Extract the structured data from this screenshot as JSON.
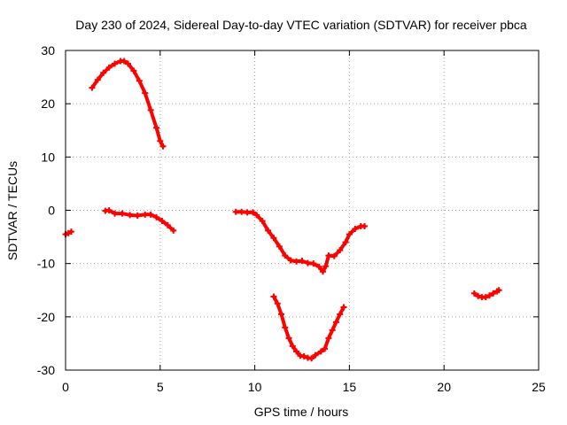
{
  "chart_data": {
    "type": "scatter",
    "title": "Day 230 of 2024, Sidereal Day-to-day VTEC variation (SDTVAR) for receiver pbca",
    "xlabel": "GPS time / hours",
    "ylabel": "SDTVAR / TECUs",
    "xlim": [
      0,
      25
    ],
    "ylim": [
      -30,
      30
    ],
    "xticks": [
      0,
      5,
      10,
      15,
      20,
      25
    ],
    "yticks": [
      -30,
      -20,
      -10,
      0,
      10,
      20,
      30
    ],
    "grid": true,
    "legend": "none",
    "series": [
      {
        "name": "sdtvar-arc-1",
        "color": "#ff0000",
        "points": [
          [
            0.0,
            -4.5
          ],
          [
            0.15,
            -4.3
          ],
          [
            0.3,
            -4.0
          ]
        ]
      },
      {
        "name": "sdtvar-arc-2",
        "color": "#ff0000",
        "points": [
          [
            1.4,
            23.0
          ],
          [
            1.7,
            24.5
          ],
          [
            2.0,
            25.8
          ],
          [
            2.3,
            26.8
          ],
          [
            2.6,
            27.5
          ],
          [
            2.9,
            28.0
          ],
          [
            3.1,
            28.0
          ],
          [
            3.3,
            27.5
          ],
          [
            3.6,
            26.2
          ],
          [
            3.9,
            24.3
          ],
          [
            4.2,
            22.0
          ],
          [
            4.5,
            18.8
          ],
          [
            4.8,
            15.5
          ],
          [
            5.0,
            13.0
          ],
          [
            5.15,
            12.0
          ]
        ]
      },
      {
        "name": "sdtvar-arc-3",
        "color": "#ff0000",
        "points": [
          [
            2.1,
            -0.1
          ],
          [
            2.3,
            0.0
          ],
          [
            2.6,
            -0.6
          ],
          [
            3.0,
            -0.6
          ],
          [
            3.4,
            -0.9
          ],
          [
            3.8,
            -1.0
          ],
          [
            4.2,
            -0.8
          ],
          [
            4.5,
            -0.8
          ],
          [
            4.8,
            -1.3
          ],
          [
            5.1,
            -2.0
          ],
          [
            5.4,
            -2.8
          ],
          [
            5.7,
            -3.8
          ]
        ]
      },
      {
        "name": "sdtvar-arc-4",
        "color": "#ff0000",
        "points": [
          [
            9.0,
            -0.3
          ],
          [
            9.3,
            -0.3
          ],
          [
            9.6,
            -0.4
          ],
          [
            9.9,
            -0.4
          ],
          [
            10.1,
            -0.9
          ],
          [
            10.4,
            -2.0
          ],
          [
            10.7,
            -3.8
          ],
          [
            11.0,
            -5.2
          ],
          [
            11.3,
            -6.8
          ],
          [
            11.6,
            -8.5
          ],
          [
            11.9,
            -9.4
          ],
          [
            12.2,
            -9.6
          ],
          [
            12.5,
            -9.5
          ],
          [
            12.8,
            -9.9
          ],
          [
            13.1,
            -10.0
          ],
          [
            13.4,
            -10.6
          ],
          [
            13.6,
            -11.5
          ],
          [
            13.75,
            -10.5
          ],
          [
            13.9,
            -8.5
          ],
          [
            14.2,
            -8.6
          ],
          [
            14.5,
            -7.5
          ],
          [
            14.8,
            -6.0
          ],
          [
            15.0,
            -4.5
          ],
          [
            15.3,
            -3.5
          ],
          [
            15.6,
            -3.0
          ],
          [
            15.8,
            -3.0
          ]
        ]
      },
      {
        "name": "sdtvar-arc-5",
        "color": "#ff0000",
        "points": [
          [
            11.0,
            -16.2
          ],
          [
            11.2,
            -17.5
          ],
          [
            11.4,
            -19.5
          ],
          [
            11.6,
            -22.0
          ],
          [
            11.8,
            -24.0
          ],
          [
            12.0,
            -25.5
          ],
          [
            12.2,
            -26.5
          ],
          [
            12.4,
            -27.3
          ],
          [
            12.6,
            -27.4
          ],
          [
            12.8,
            -27.7
          ],
          [
            13.0,
            -27.8
          ],
          [
            13.2,
            -27.2
          ],
          [
            13.5,
            -26.5
          ],
          [
            13.7,
            -26.0
          ],
          [
            13.9,
            -24.0
          ],
          [
            14.1,
            -22.5
          ],
          [
            14.3,
            -21.0
          ],
          [
            14.5,
            -19.5
          ],
          [
            14.7,
            -18.2
          ]
        ]
      },
      {
        "name": "sdtvar-arc-6",
        "color": "#ff0000",
        "points": [
          [
            21.6,
            -15.6
          ],
          [
            21.8,
            -16.1
          ],
          [
            22.0,
            -16.3
          ],
          [
            22.2,
            -16.3
          ],
          [
            22.4,
            -16.0
          ],
          [
            22.6,
            -15.6
          ],
          [
            22.8,
            -15.2
          ],
          [
            22.9,
            -15.0
          ]
        ]
      }
    ]
  }
}
